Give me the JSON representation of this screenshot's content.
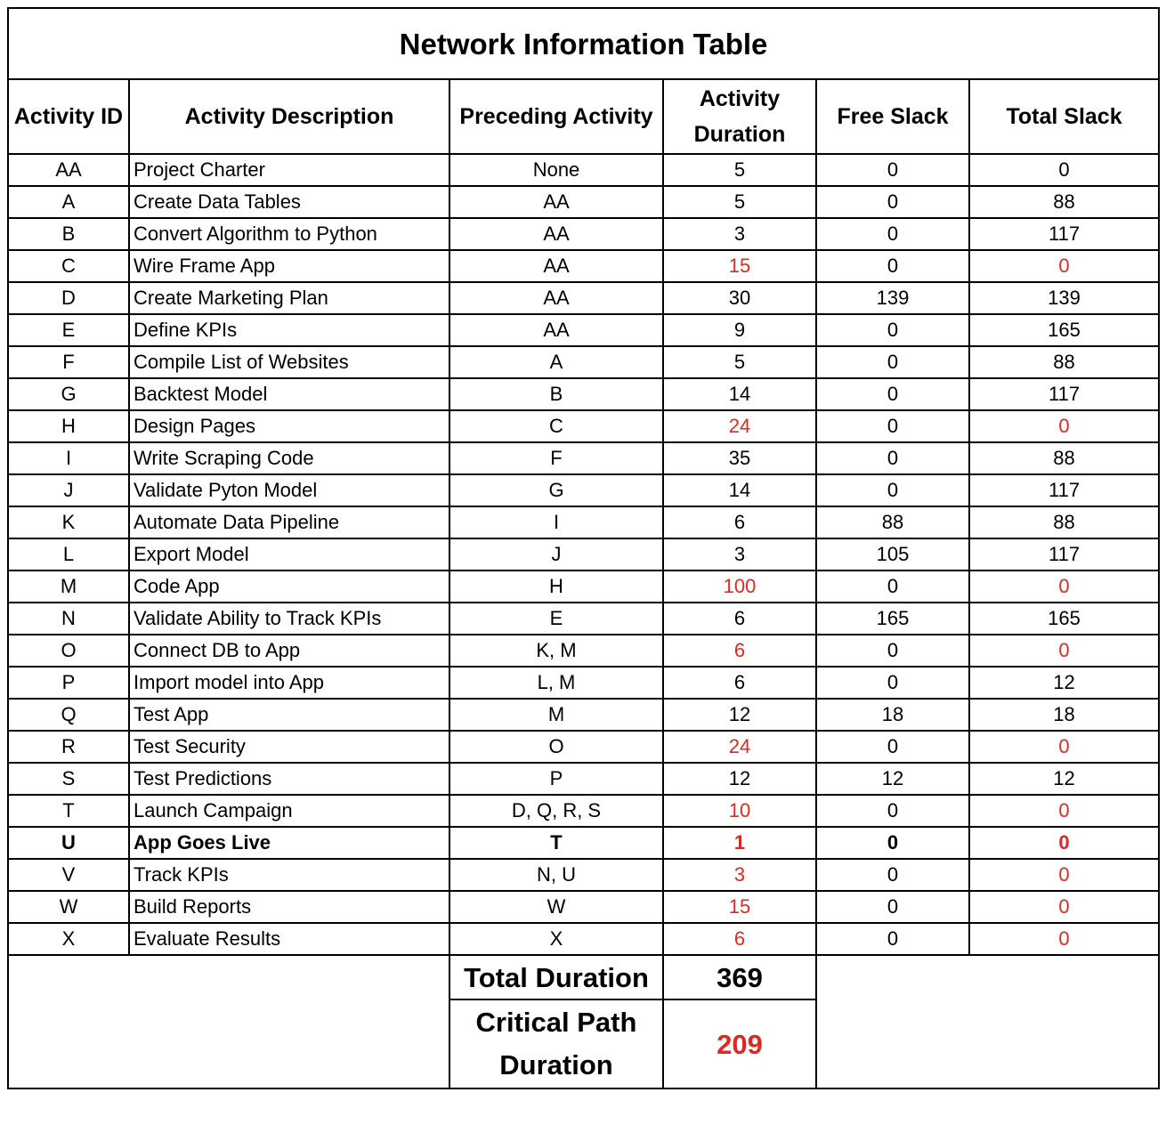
{
  "title": "Network Information Table",
  "headers": {
    "id": "Activity ID",
    "description": "Activity Description",
    "preceding": "Preceding Activity",
    "duration": "Activity Duration",
    "free_slack": "Free Slack",
    "total_slack": "Total Slack"
  },
  "colors": {
    "critical": "#e0281e",
    "text": "#000000",
    "border": "#000000"
  },
  "rows": [
    {
      "id": "AA",
      "description": "Project Charter",
      "preceding": "None",
      "duration": "5",
      "free_slack": "0",
      "total_slack": "0",
      "critical": false,
      "bold": false
    },
    {
      "id": "A",
      "description": "Create Data Tables",
      "preceding": "AA",
      "duration": "5",
      "free_slack": "0",
      "total_slack": "88",
      "critical": false,
      "bold": false
    },
    {
      "id": "B",
      "description": "Convert Algorithm to Python",
      "preceding": "AA",
      "duration": "3",
      "free_slack": "0",
      "total_slack": "117",
      "critical": false,
      "bold": false
    },
    {
      "id": "C",
      "description": "Wire Frame App",
      "preceding": "AA",
      "duration": "15",
      "free_slack": "0",
      "total_slack": "0",
      "critical": true,
      "bold": false
    },
    {
      "id": "D",
      "description": "Create Marketing Plan",
      "preceding": "AA",
      "duration": "30",
      "free_slack": "139",
      "total_slack": "139",
      "critical": false,
      "bold": false
    },
    {
      "id": "E",
      "description": "Define KPIs",
      "preceding": "AA",
      "duration": "9",
      "free_slack": "0",
      "total_slack": "165",
      "critical": false,
      "bold": false
    },
    {
      "id": "F",
      "description": "Compile List of Websites",
      "preceding": "A",
      "duration": "5",
      "free_slack": "0",
      "total_slack": "88",
      "critical": false,
      "bold": false
    },
    {
      "id": "G",
      "description": "Backtest Model",
      "preceding": "B",
      "duration": "14",
      "free_slack": "0",
      "total_slack": "117",
      "critical": false,
      "bold": false
    },
    {
      "id": "H",
      "description": "Design Pages",
      "preceding": "C",
      "duration": "24",
      "free_slack": "0",
      "total_slack": "0",
      "critical": true,
      "bold": false
    },
    {
      "id": "I",
      "description": "Write Scraping Code",
      "preceding": "F",
      "duration": "35",
      "free_slack": "0",
      "total_slack": "88",
      "critical": false,
      "bold": false
    },
    {
      "id": "J",
      "description": "Validate Pyton Model",
      "preceding": "G",
      "duration": "14",
      "free_slack": "0",
      "total_slack": "117",
      "critical": false,
      "bold": false
    },
    {
      "id": "K",
      "description": "Automate Data Pipeline",
      "preceding": "I",
      "duration": "6",
      "free_slack": "88",
      "total_slack": "88",
      "critical": false,
      "bold": false
    },
    {
      "id": "L",
      "description": "Export Model",
      "preceding": "J",
      "duration": "3",
      "free_slack": "105",
      "total_slack": "117",
      "critical": false,
      "bold": false
    },
    {
      "id": "M",
      "description": "Code App",
      "preceding": "H",
      "duration": "100",
      "free_slack": "0",
      "total_slack": "0",
      "critical": true,
      "bold": false
    },
    {
      "id": "N",
      "description": "Validate Ability to Track KPIs",
      "preceding": "E",
      "duration": "6",
      "free_slack": "165",
      "total_slack": "165",
      "critical": false,
      "bold": false
    },
    {
      "id": "O",
      "description": "Connect DB to App",
      "preceding": "K, M",
      "duration": "6",
      "free_slack": "0",
      "total_slack": "0",
      "critical": true,
      "bold": false
    },
    {
      "id": "P",
      "description": "Import model into App",
      "preceding": "L, M",
      "duration": "6",
      "free_slack": "0",
      "total_slack": "12",
      "critical": false,
      "bold": false
    },
    {
      "id": "Q",
      "description": "Test App",
      "preceding": "M",
      "duration": "12",
      "free_slack": "18",
      "total_slack": "18",
      "critical": false,
      "bold": false
    },
    {
      "id": "R",
      "description": "Test Security",
      "preceding": "O",
      "duration": "24",
      "free_slack": "0",
      "total_slack": "0",
      "critical": true,
      "bold": false
    },
    {
      "id": "S",
      "description": "Test Predictions",
      "preceding": "P",
      "duration": "12",
      "free_slack": "12",
      "total_slack": "12",
      "critical": false,
      "bold": false
    },
    {
      "id": "T",
      "description": "Launch Campaign",
      "preceding": "D, Q, R, S",
      "duration": "10",
      "free_slack": "0",
      "total_slack": "0",
      "critical": true,
      "bold": false
    },
    {
      "id": "U",
      "description": "App Goes Live",
      "preceding": "T",
      "duration": "1",
      "free_slack": "0",
      "total_slack": "0",
      "critical": true,
      "bold": true
    },
    {
      "id": "V",
      "description": "Track KPIs",
      "preceding": "N, U",
      "duration": "3",
      "free_slack": "0",
      "total_slack": "0",
      "critical": true,
      "bold": false
    },
    {
      "id": "W",
      "description": "Build Reports",
      "preceding": "W",
      "duration": "15",
      "free_slack": "0",
      "total_slack": "0",
      "critical": true,
      "bold": false
    },
    {
      "id": "X",
      "description": "Evaluate Results",
      "preceding": "X",
      "duration": "6",
      "free_slack": "0",
      "total_slack": "0",
      "critical": true,
      "bold": false
    }
  ],
  "summary": {
    "total_duration_label": "Total Duration",
    "total_duration_value": "369",
    "critical_path_label": "Critical Path Duration",
    "critical_path_value": "209"
  }
}
